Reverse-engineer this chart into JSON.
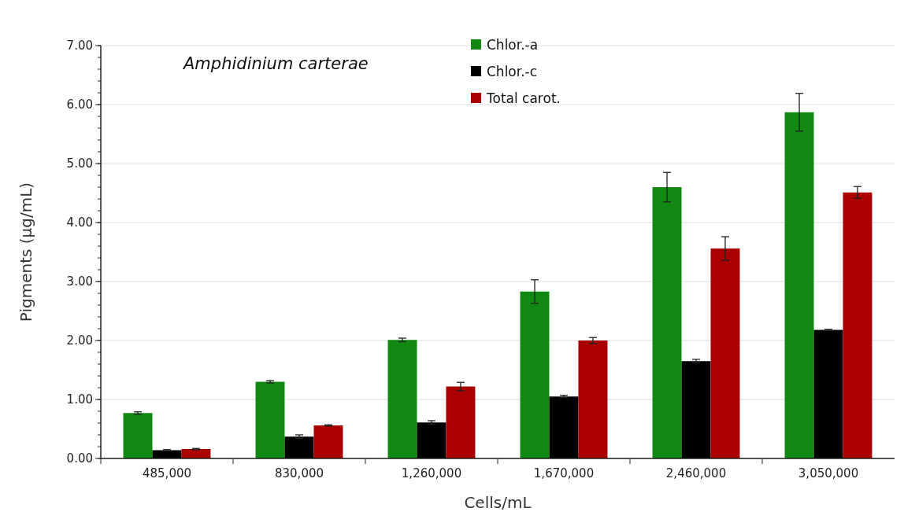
{
  "chart_data": {
    "type": "bar",
    "xlabel": "Cells/mL",
    "ylabel": "Pigments (µg/mL)",
    "annotations": [
      "Amphidinium carterae"
    ],
    "categories": [
      "485,000",
      "830,000",
      "1,260,000",
      "1,670,000",
      "2,460,000",
      "3,050,000"
    ],
    "series": [
      {
        "name": "Chlor.-a",
        "color": "#118811",
        "values": [
          0.77,
          1.3,
          2.01,
          2.83,
          4.6,
          5.87
        ],
        "errors": [
          0.02,
          0.02,
          0.03,
          0.2,
          0.25,
          0.32
        ]
      },
      {
        "name": "Chlor.-c",
        "color": "#000000",
        "values": [
          0.14,
          0.37,
          0.61,
          1.05,
          1.65,
          2.18
        ],
        "errors": [
          0.01,
          0.03,
          0.03,
          0.02,
          0.03,
          0.01
        ]
      },
      {
        "name": "Total carot.",
        "color": "#aa0000",
        "values": [
          0.16,
          0.56,
          1.22,
          2.0,
          3.56,
          4.51
        ],
        "errors": [
          0.01,
          0.01,
          0.07,
          0.05,
          0.2,
          0.1
        ]
      }
    ],
    "ylim": [
      0,
      7
    ],
    "yticks": [
      {
        "value": 0,
        "label": "0.00"
      },
      {
        "value": 1,
        "label": "1.00"
      },
      {
        "value": 2,
        "label": "2.00"
      },
      {
        "value": 3,
        "label": "3.00"
      },
      {
        "value": 4,
        "label": "4.00"
      },
      {
        "value": 5,
        "label": "5.00"
      },
      {
        "value": 6,
        "label": "6.00"
      },
      {
        "value": 7,
        "label": "7.00"
      }
    ],
    "grid": "y",
    "legend": "top"
  }
}
